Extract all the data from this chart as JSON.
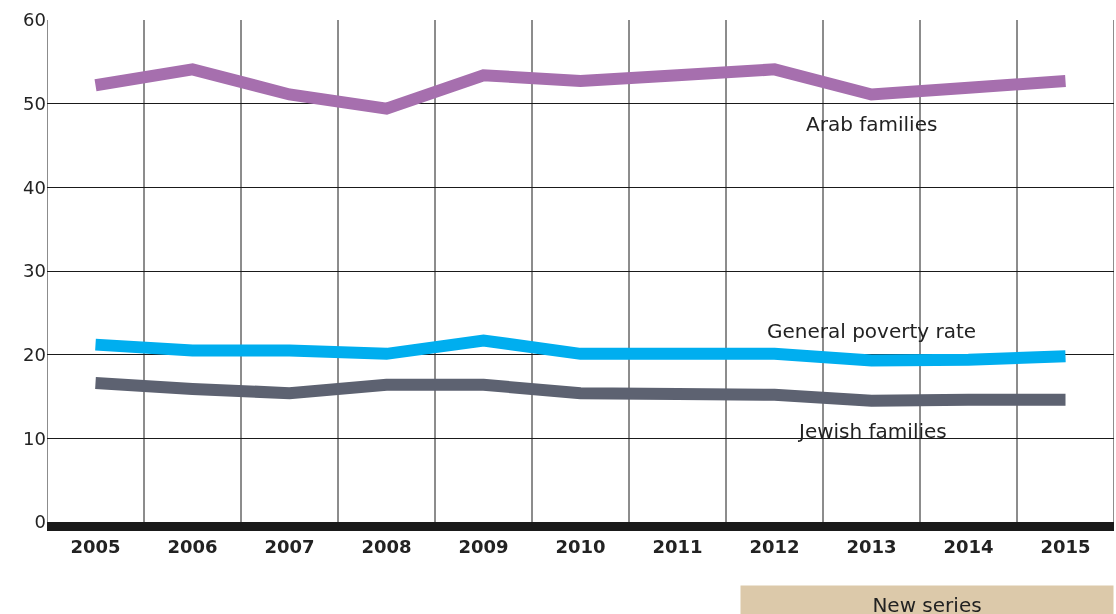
{
  "chart_data": {
    "type": "line",
    "categories": [
      "2005",
      "2006",
      "2007",
      "2008",
      "2009",
      "2010",
      "2011",
      "2012",
      "2013",
      "2014",
      "2015"
    ],
    "series": [
      {
        "name": "Arab families",
        "color": "#a66fae",
        "values": [
          52.2,
          54.1,
          51.1,
          49.4,
          53.4,
          52.7,
          53.4,
          54.1,
          51.1,
          51.9,
          52.7
        ]
      },
      {
        "name": "General poverty rate",
        "color": "#00aeef",
        "values": [
          21.2,
          20.5,
          20.5,
          20.1,
          21.7,
          20.1,
          20.1,
          20.1,
          19.3,
          19.4,
          19.8
        ]
      },
      {
        "name": "Jewish families",
        "color": "#5d6271",
        "values": [
          16.6,
          15.9,
          15.4,
          16.4,
          16.4,
          15.4,
          15.3,
          15.2,
          14.5,
          14.6,
          14.6
        ]
      }
    ],
    "ylim": [
      0,
      60
    ],
    "yticks": [
      0,
      10,
      20,
      30,
      40,
      50,
      60
    ],
    "grid": true,
    "legend": false,
    "marker": "none",
    "line_style": "solid",
    "annotations": [
      "New series"
    ]
  }
}
